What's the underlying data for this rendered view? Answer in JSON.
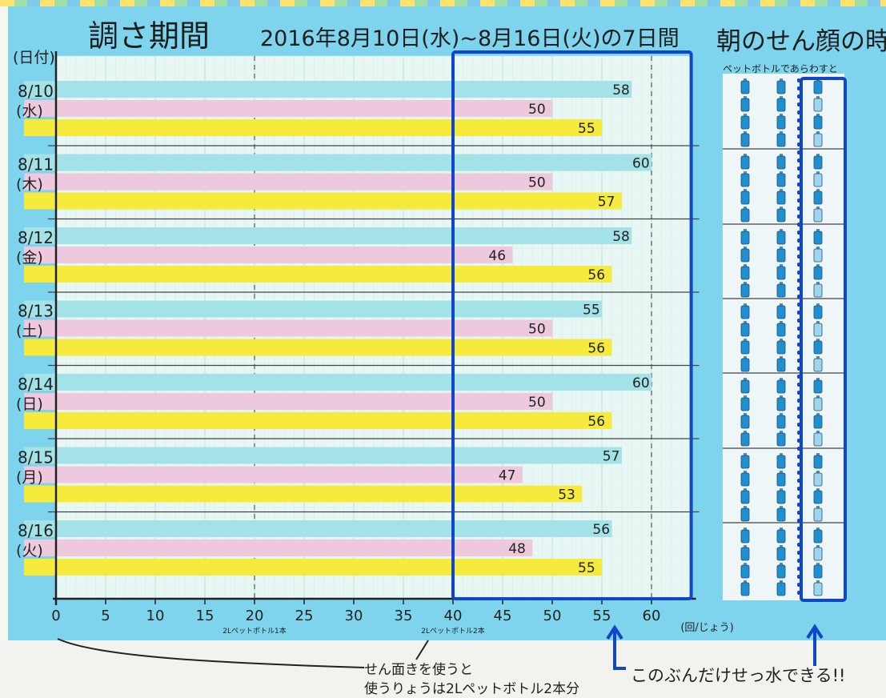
{
  "title": {
    "main": "調さ期間",
    "range": "2016年8月10日(水)~8月16日(火)の7日間",
    "right": "朝のせん顔の時"
  },
  "y_unit": "(日付)",
  "x_unit": "(回/じょう)",
  "bottle_panel_title": "ペットボトルであらわすと",
  "annotations": {
    "bottle_1": "2Lペットボトル1本",
    "bottle_2": "2Lペットボトル2本",
    "note_line1": "せん面きを使うと",
    "note_line2": "使うりょうは2Lペットボトル2本分",
    "savings": "このぶんだけせっ水できる!!"
  },
  "colors": {
    "background": "#7dd4ec",
    "grid_paper": "#e8f6f4",
    "series_1": "#a3e2e6",
    "series_2": "#eec9de",
    "series_3": "#f6ea3c",
    "highlight_frame": "#1146c4",
    "bottle": "#1f8fcf"
  },
  "chart_data": {
    "type": "bar",
    "orientation": "horizontal",
    "categories": [
      {
        "date": "8/10",
        "day": "(水)"
      },
      {
        "date": "8/11",
        "day": "(木)"
      },
      {
        "date": "8/12",
        "day": "(金)"
      },
      {
        "date": "8/13",
        "day": "(土)"
      },
      {
        "date": "8/14",
        "day": "(日)"
      },
      {
        "date": "8/15",
        "day": "(月)"
      },
      {
        "date": "8/16",
        "day": "(火)"
      }
    ],
    "series": [
      {
        "values": [
          58,
          60,
          58,
          55,
          60,
          57,
          56
        ]
      },
      {
        "values": [
          50,
          50,
          46,
          50,
          50,
          47,
          48
        ]
      },
      {
        "values": [
          55,
          57,
          56,
          56,
          56,
          53,
          55
        ]
      }
    ],
    "x_ticks": [
      "0",
      "5",
      "10",
      "15",
      "20",
      "25",
      "30",
      "35",
      "40",
      "45",
      "50",
      "55",
      "60"
    ],
    "xlim": [
      0,
      64
    ],
    "reference_line": 40,
    "dashed_lines": [
      20,
      40,
      60
    ],
    "highlight_range": [
      40,
      64
    ],
    "grid": true
  },
  "bottle_panel": {
    "columns": 3,
    "rows": 7,
    "per_row": 4
  }
}
